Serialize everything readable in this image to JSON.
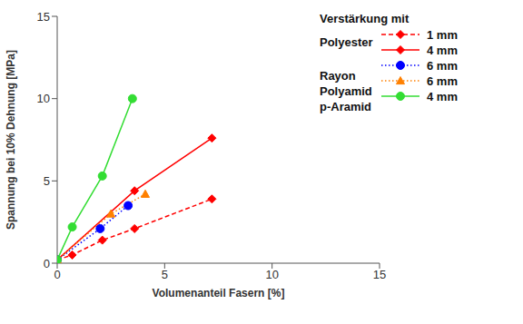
{
  "chart_data": {
    "type": "line",
    "x_label": "Volumenanteil Fasern [%]",
    "y_label": "Spannung bei 10% Dehnung [MPa]",
    "xlim": [
      0,
      15
    ],
    "xticks": [
      0,
      5,
      10,
      15
    ],
    "ylim": [
      0,
      15
    ],
    "yticks": [
      0,
      5,
      10,
      15
    ],
    "grid": false,
    "legend": "upper right",
    "legend_title": "Verstärkung mit",
    "series": [
      {
        "name": "1 mm",
        "group": "Polyester",
        "color": "#ff0000",
        "marker": "diamond",
        "line_style": "dashed",
        "x": [
          0,
          0.7,
          2.1,
          3.6,
          7.2
        ],
        "values": [
          0.2,
          0.5,
          1.4,
          2.1,
          3.9
        ]
      },
      {
        "name": "4 mm",
        "group": "Polyester",
        "color": "#ff0000",
        "marker": "diamond",
        "line_style": "solid",
        "x": [
          0,
          3.6,
          7.2
        ],
        "values": [
          0.2,
          4.4,
          7.6
        ]
      },
      {
        "name": "6 mm",
        "group": "Rayon",
        "color": "#0000ff",
        "marker": "circle",
        "line_style": "dotted",
        "x": [
          0,
          2.0,
          3.3
        ],
        "values": [
          0.2,
          2.1,
          3.5
        ]
      },
      {
        "name": "6 mm",
        "group": "Polyamid",
        "color": "#ff8000",
        "marker": "triangle",
        "line_style": "dotted",
        "x": [
          0,
          2.5,
          4.1
        ],
        "values": [
          0.2,
          3.0,
          4.2
        ]
      },
      {
        "name": "4 mm",
        "group": "p-Aramid",
        "color": "#33dd33",
        "marker": "circle",
        "line_style": "solid",
        "x": [
          0,
          0.7,
          2.1,
          3.5
        ],
        "values": [
          0.2,
          2.2,
          5.3,
          10.0
        ]
      }
    ]
  }
}
